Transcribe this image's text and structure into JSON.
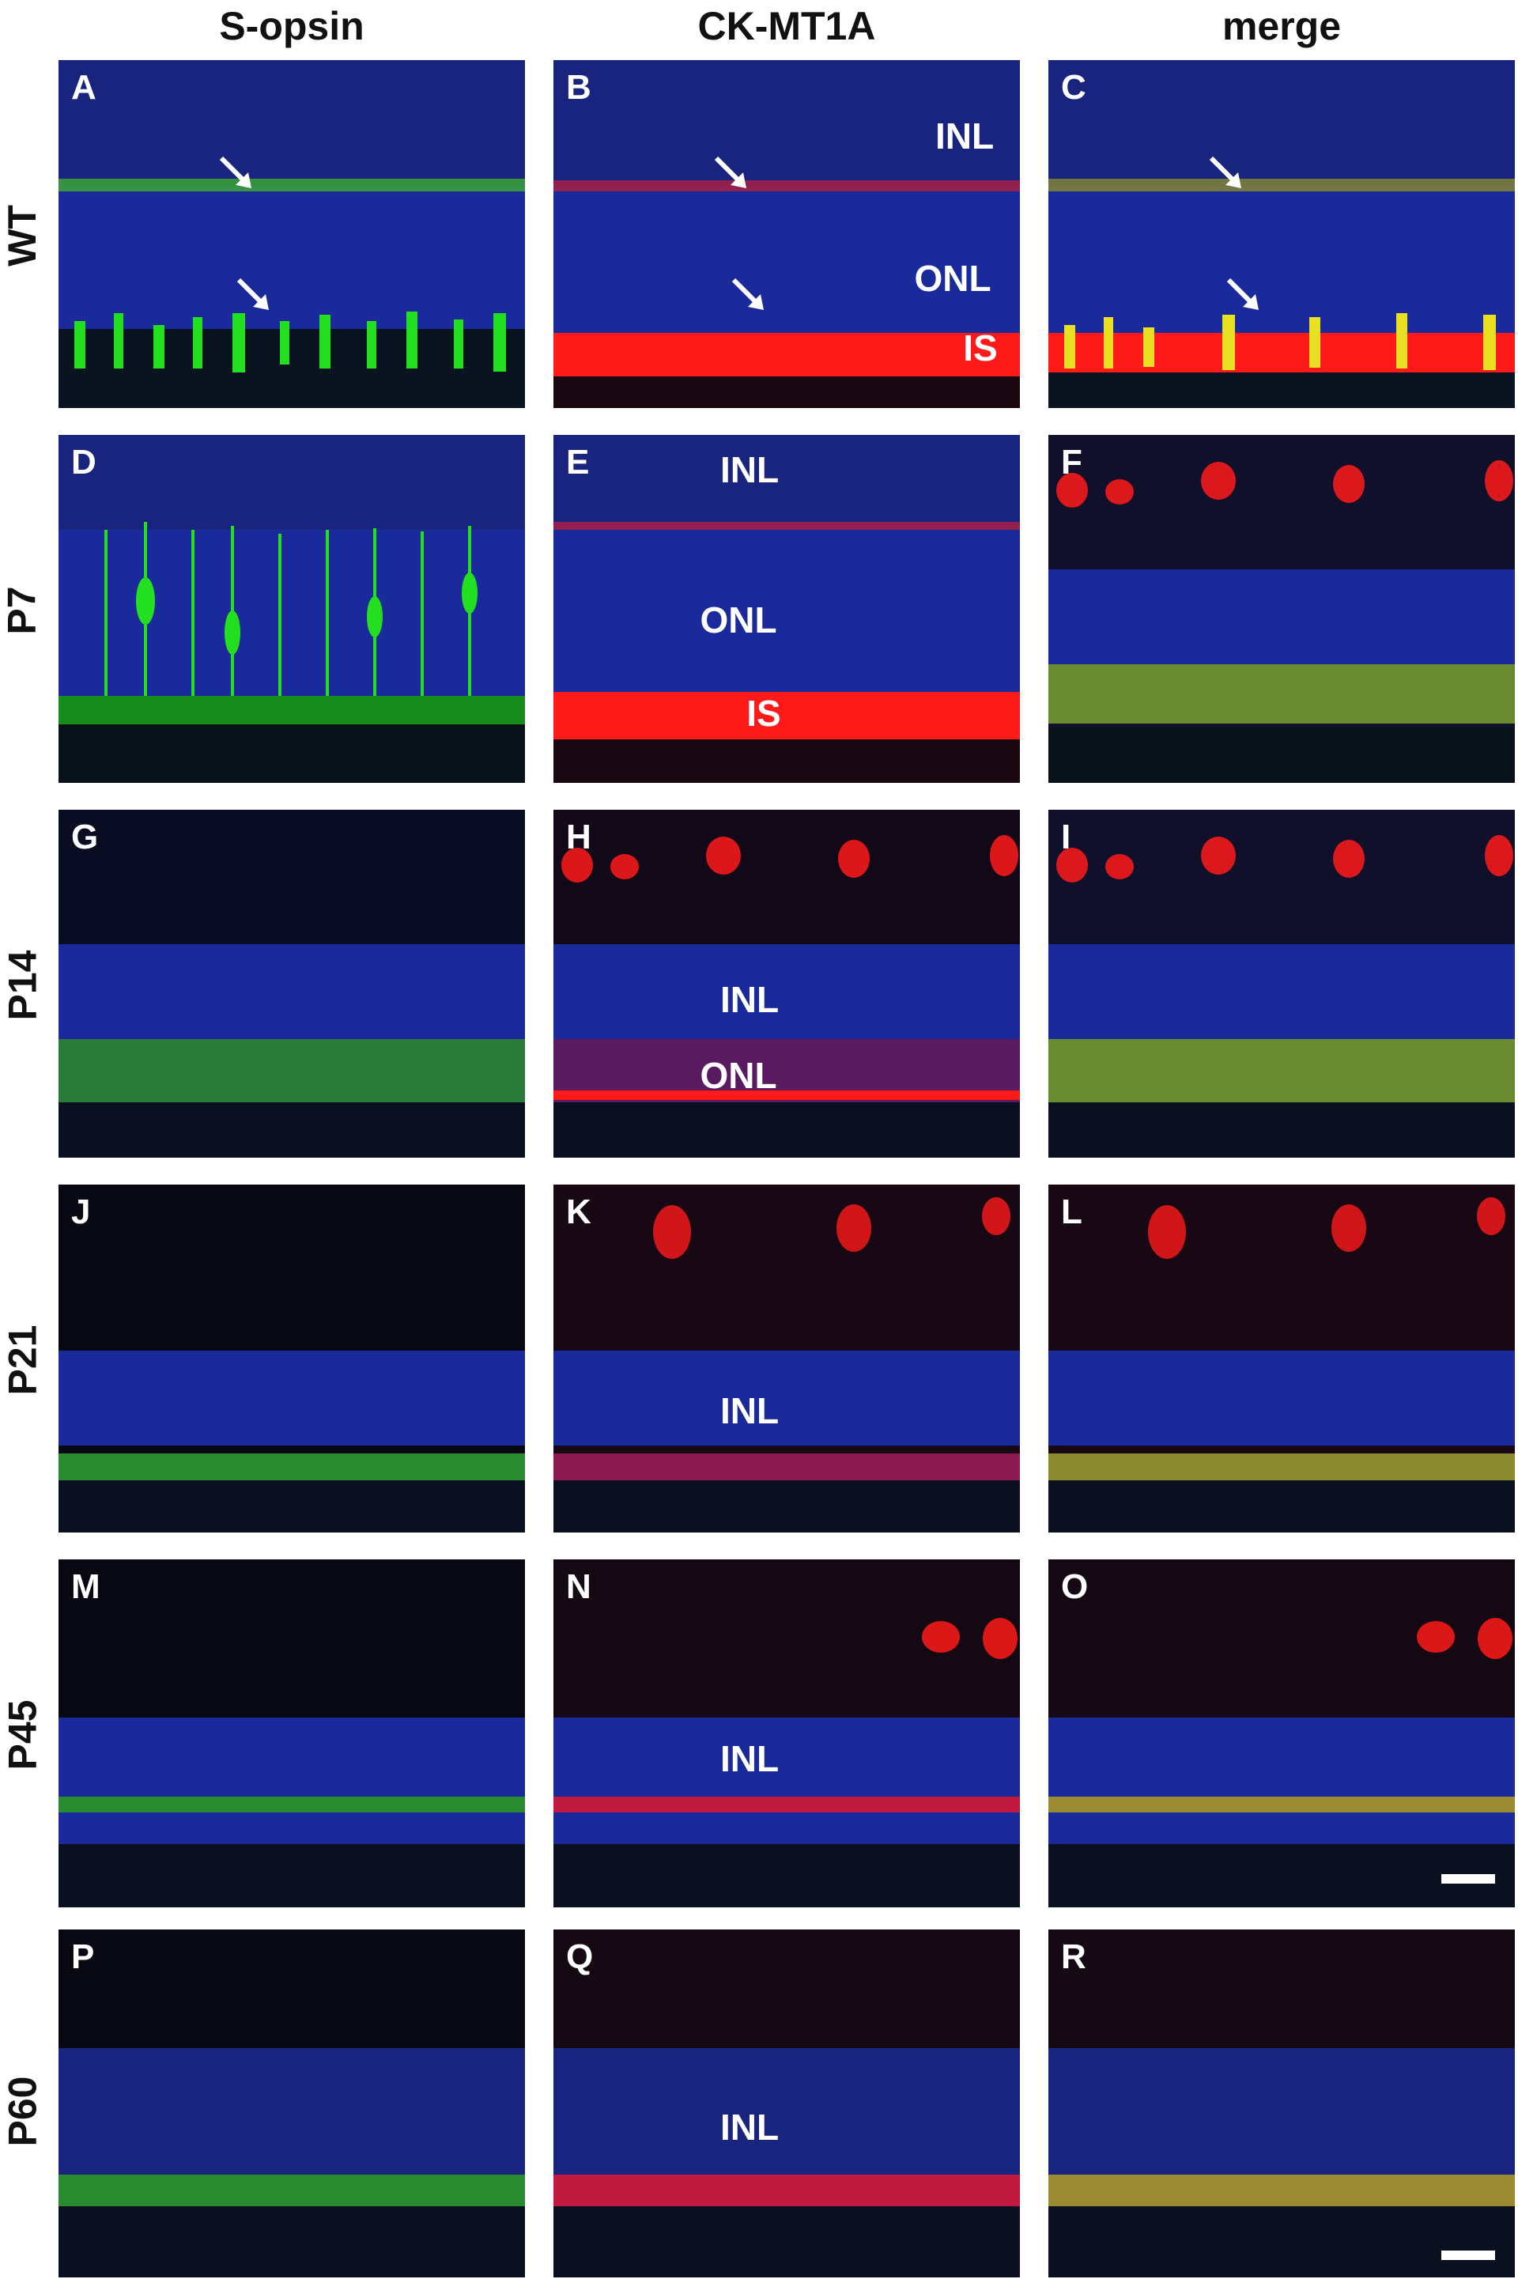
{
  "columns": [
    {
      "title": "S-opsin"
    },
    {
      "title": "CK-MT1A"
    },
    {
      "title": "merge"
    }
  ],
  "rows": [
    {
      "label": "WT",
      "panels": [
        {
          "letter": "A",
          "labels": []
        },
        {
          "letter": "B",
          "labels": [
            "INL",
            "ONL",
            "IS"
          ]
        },
        {
          "letter": "C",
          "labels": []
        }
      ]
    },
    {
      "label": "P7",
      "panels": [
        {
          "letter": "D",
          "labels": []
        },
        {
          "letter": "E",
          "labels": [
            "INL",
            "ONL",
            "IS"
          ]
        },
        {
          "letter": "F",
          "labels": []
        }
      ]
    },
    {
      "label": "P14",
      "panels": [
        {
          "letter": "G",
          "labels": []
        },
        {
          "letter": "H",
          "labels": [
            "INL",
            "ONL"
          ]
        },
        {
          "letter": "I",
          "labels": []
        }
      ]
    },
    {
      "label": "P21",
      "panels": [
        {
          "letter": "J",
          "labels": []
        },
        {
          "letter": "K",
          "labels": [
            "INL"
          ]
        },
        {
          "letter": "L",
          "labels": []
        }
      ]
    },
    {
      "label": "P45",
      "panels": [
        {
          "letter": "M",
          "labels": []
        },
        {
          "letter": "N",
          "labels": [
            "INL"
          ]
        },
        {
          "letter": "O",
          "labels": []
        }
      ]
    },
    {
      "label": "P60",
      "panels": [
        {
          "letter": "P",
          "labels": []
        },
        {
          "letter": "Q",
          "labels": [
            "INL"
          ]
        },
        {
          "letter": "R",
          "labels": []
        }
      ]
    }
  ],
  "colors": {
    "dapi": "#1a2a9a",
    "s_opsin": "#22e020",
    "ck_mt1a": "#ff1a1a",
    "merge_overlap": "#e8e020"
  }
}
